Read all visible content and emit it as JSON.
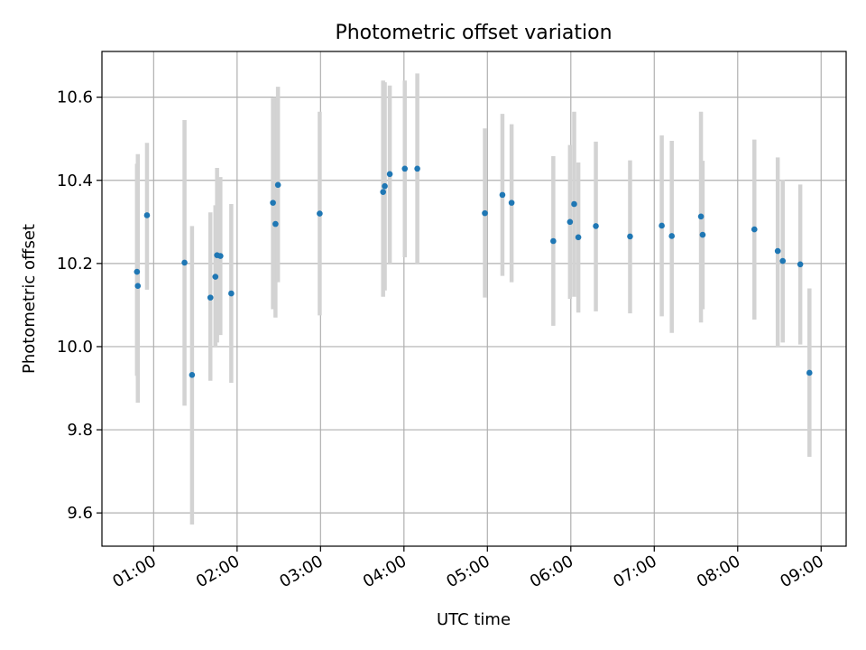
{
  "chart_data": {
    "type": "scatter",
    "title": "Photometric offset variation",
    "xlabel": "UTC time",
    "ylabel": "Photometric offset",
    "x_unit": "hours UTC",
    "xlim": [
      0.38,
      9.3
    ],
    "ylim": [
      9.52,
      10.71
    ],
    "xticks": [
      {
        "value": 1,
        "label": "01:00"
      },
      {
        "value": 2,
        "label": "02:00"
      },
      {
        "value": 3,
        "label": "03:00"
      },
      {
        "value": 4,
        "label": "04:00"
      },
      {
        "value": 5,
        "label": "05:00"
      },
      {
        "value": 6,
        "label": "06:00"
      },
      {
        "value": 7,
        "label": "07:00"
      },
      {
        "value": 8,
        "label": "08:00"
      },
      {
        "value": 9,
        "label": "09:00"
      }
    ],
    "yticks": [
      {
        "value": 9.6,
        "label": "9.6"
      },
      {
        "value": 9.8,
        "label": "9.8"
      },
      {
        "value": 10.0,
        "label": "10.0"
      },
      {
        "value": 10.2,
        "label": "10.2"
      },
      {
        "value": 10.4,
        "label": "10.4"
      },
      {
        "value": 10.6,
        "label": "10.6"
      }
    ],
    "grid": true,
    "marker_color": "#1f77b4",
    "errorbar_color": "#d3d3d3",
    "points": [
      {
        "x": 0.8,
        "y": 10.18,
        "ylo": 9.93,
        "yhi": 10.44
      },
      {
        "x": 0.81,
        "y": 10.146,
        "ylo": 9.865,
        "yhi": 10.463
      },
      {
        "x": 0.92,
        "y": 10.316,
        "ylo": 10.137,
        "yhi": 10.49
      },
      {
        "x": 1.37,
        "y": 10.202,
        "ylo": 9.858,
        "yhi": 10.545
      },
      {
        "x": 1.46,
        "y": 9.932,
        "ylo": 9.572,
        "yhi": 10.29
      },
      {
        "x": 1.68,
        "y": 10.118,
        "ylo": 9.918,
        "yhi": 10.323
      },
      {
        "x": 1.74,
        "y": 10.168,
        "ylo": 10.0,
        "yhi": 10.34
      },
      {
        "x": 1.76,
        "y": 10.22,
        "ylo": 10.01,
        "yhi": 10.43
      },
      {
        "x": 1.8,
        "y": 10.218,
        "ylo": 10.028,
        "yhi": 10.408
      },
      {
        "x": 1.93,
        "y": 10.128,
        "ylo": 9.913,
        "yhi": 10.343
      },
      {
        "x": 2.43,
        "y": 10.346,
        "ylo": 10.09,
        "yhi": 10.598
      },
      {
        "x": 2.46,
        "y": 10.295,
        "ylo": 10.07,
        "yhi": 10.6
      },
      {
        "x": 2.49,
        "y": 10.389,
        "ylo": 10.155,
        "yhi": 10.625
      },
      {
        "x": 2.99,
        "y": 10.32,
        "ylo": 10.075,
        "yhi": 10.565
      },
      {
        "x": 3.75,
        "y": 10.372,
        "ylo": 10.12,
        "yhi": 10.64
      },
      {
        "x": 3.77,
        "y": 10.386,
        "ylo": 10.135,
        "yhi": 10.636
      },
      {
        "x": 3.83,
        "y": 10.415,
        "ylo": 10.2,
        "yhi": 10.628
      },
      {
        "x": 4.01,
        "y": 10.428,
        "ylo": 10.215,
        "yhi": 10.64
      },
      {
        "x": 4.16,
        "y": 10.428,
        "ylo": 10.2,
        "yhi": 10.657
      },
      {
        "x": 4.97,
        "y": 10.321,
        "ylo": 10.118,
        "yhi": 10.525
      },
      {
        "x": 5.18,
        "y": 10.365,
        "ylo": 10.17,
        "yhi": 10.56
      },
      {
        "x": 5.29,
        "y": 10.346,
        "ylo": 10.155,
        "yhi": 10.535
      },
      {
        "x": 5.79,
        "y": 10.254,
        "ylo": 10.05,
        "yhi": 10.458
      },
      {
        "x": 5.99,
        "y": 10.3,
        "ylo": 10.115,
        "yhi": 10.485
      },
      {
        "x": 6.04,
        "y": 10.343,
        "ylo": 10.12,
        "yhi": 10.565
      },
      {
        "x": 6.09,
        "y": 10.263,
        "ylo": 10.082,
        "yhi": 10.443
      },
      {
        "x": 6.3,
        "y": 10.29,
        "ylo": 10.085,
        "yhi": 10.493
      },
      {
        "x": 6.71,
        "y": 10.265,
        "ylo": 10.08,
        "yhi": 10.448
      },
      {
        "x": 7.09,
        "y": 10.291,
        "ylo": 10.073,
        "yhi": 10.508
      },
      {
        "x": 7.21,
        "y": 10.266,
        "ylo": 10.033,
        "yhi": 10.495
      },
      {
        "x": 7.56,
        "y": 10.313,
        "ylo": 10.058,
        "yhi": 10.565
      },
      {
        "x": 7.58,
        "y": 10.269,
        "ylo": 10.09,
        "yhi": 10.447
      },
      {
        "x": 8.2,
        "y": 10.282,
        "ylo": 10.065,
        "yhi": 10.498
      },
      {
        "x": 8.48,
        "y": 10.23,
        "ylo": 10.0,
        "yhi": 10.455
      },
      {
        "x": 8.54,
        "y": 10.206,
        "ylo": 10.01,
        "yhi": 10.402
      },
      {
        "x": 8.75,
        "y": 10.198,
        "ylo": 10.005,
        "yhi": 10.39
      },
      {
        "x": 8.86,
        "y": 9.937,
        "ylo": 9.735,
        "yhi": 10.14
      }
    ]
  }
}
